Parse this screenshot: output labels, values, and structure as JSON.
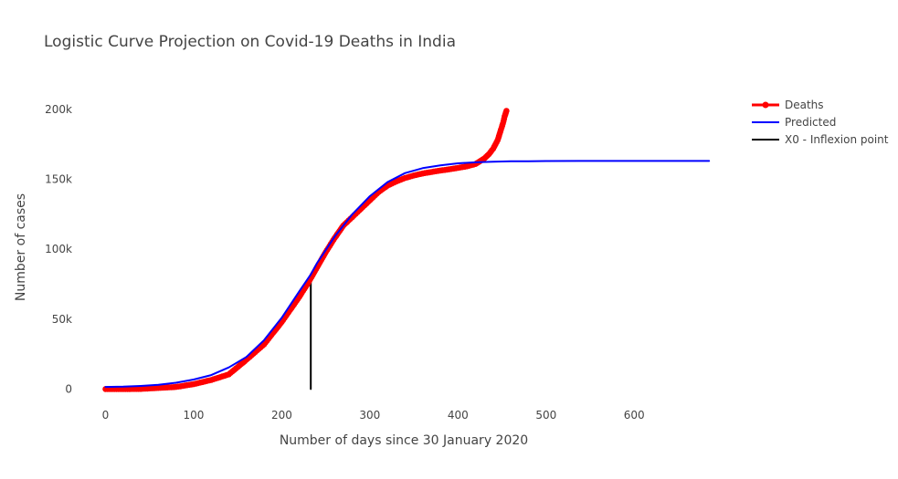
{
  "chart_data": {
    "type": "line",
    "title": "Logistic Curve Projection on Covid-19 Deaths in India",
    "xlabel": "Number of days since 30 January 2020",
    "ylabel": "Number of cases",
    "xlim": [
      -15,
      720
    ],
    "ylim": [
      -18000,
      215000
    ],
    "x_ticks": [
      0,
      100,
      200,
      300,
      400,
      500,
      600
    ],
    "x_tick_labels": [
      "0",
      "100",
      "200",
      "300",
      "400",
      "500",
      "600"
    ],
    "y_ticks": [
      0,
      50000,
      100000,
      150000,
      200000
    ],
    "y_tick_labels": [
      "0",
      "50k",
      "100k",
      "150k",
      "200k"
    ],
    "grid": false,
    "legend_position": "top-right",
    "series": [
      {
        "name": "Deaths",
        "color": "#ff0000",
        "mode": "lines+markers",
        "x": [
          0,
          20,
          40,
          60,
          80,
          100,
          120,
          140,
          160,
          180,
          200,
          220,
          230,
          240,
          250,
          260,
          270,
          280,
          290,
          300,
          310,
          320,
          330,
          340,
          350,
          360,
          370,
          380,
          390,
          400,
          410,
          420,
          430,
          435,
          440,
          445,
          448,
          451,
          453,
          455
        ],
        "y": [
          0,
          0,
          100,
          800,
          1500,
          3500,
          6500,
          10500,
          21000,
          32000,
          48000,
          66000,
          76000,
          87000,
          98000,
          108000,
          117000,
          123000,
          129000,
          135000,
          141000,
          145500,
          148500,
          151000,
          152800,
          154200,
          155300,
          156300,
          157200,
          158200,
          159300,
          161000,
          165000,
          168000,
          172000,
          178000,
          184000,
          190000,
          195000,
          199000
        ]
      },
      {
        "name": "Predicted",
        "color": "#0000ff",
        "mode": "lines",
        "x": [
          0,
          20,
          40,
          60,
          80,
          100,
          120,
          140,
          160,
          180,
          200,
          220,
          233,
          240,
          260,
          280,
          300,
          320,
          340,
          360,
          380,
          400,
          420,
          440,
          460,
          480,
          500,
          550,
          600,
          650,
          685
        ],
        "y": [
          1500,
          1700,
          2200,
          3000,
          4500,
          6800,
          10000,
          15500,
          23000,
          35000,
          51000,
          70000,
          82000,
          90000,
          109000,
          125000,
          138000,
          148000,
          154500,
          158000,
          160000,
          161500,
          162200,
          162600,
          162900,
          163000,
          163100,
          163200,
          163200,
          163200,
          163200
        ]
      },
      {
        "name": "X0 - Inflexion point",
        "color": "#000000",
        "mode": "lines",
        "x": [
          233,
          233
        ],
        "y": [
          0,
          82000
        ]
      }
    ]
  }
}
